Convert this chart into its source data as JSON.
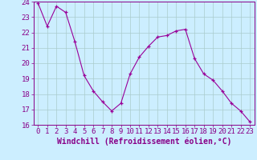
{
  "x": [
    0,
    1,
    2,
    3,
    4,
    5,
    6,
    7,
    8,
    9,
    10,
    11,
    12,
    13,
    14,
    15,
    16,
    17,
    18,
    19,
    20,
    21,
    22,
    23
  ],
  "y": [
    23.9,
    22.4,
    23.7,
    23.3,
    21.4,
    19.2,
    18.2,
    17.5,
    16.9,
    17.4,
    19.3,
    20.4,
    21.1,
    21.7,
    21.8,
    22.1,
    22.2,
    20.3,
    19.3,
    18.9,
    18.2,
    17.4,
    16.9,
    16.2
  ],
  "line_color": "#990099",
  "marker": "+",
  "bg_color": "#cceeff",
  "grid_color": "#aacccc",
  "xlabel": "Windchill (Refroidissement éolien,°C)",
  "ylim": [
    16,
    24
  ],
  "xlim_min": -0.5,
  "xlim_max": 23.5,
  "yticks": [
    16,
    17,
    18,
    19,
    20,
    21,
    22,
    23,
    24
  ],
  "xticks": [
    0,
    1,
    2,
    3,
    4,
    5,
    6,
    7,
    8,
    9,
    10,
    11,
    12,
    13,
    14,
    15,
    16,
    17,
    18,
    19,
    20,
    21,
    22,
    23
  ],
  "axis_color": "#880088",
  "tick_fontsize": 6.5,
  "xlabel_fontsize": 7.0,
  "spine_color": "#880088"
}
